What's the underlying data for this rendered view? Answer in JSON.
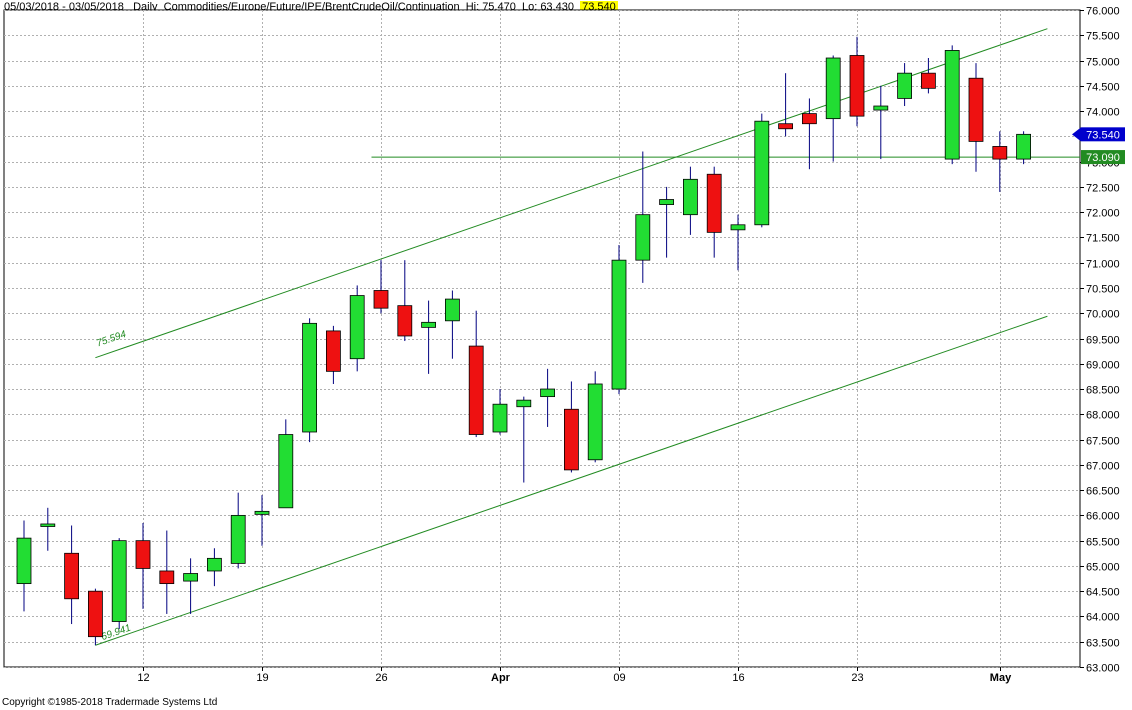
{
  "header": {
    "date_range": "05/03/2018 - 03/05/2018",
    "period": "Daily",
    "instrument": "Commodities/Europe/Future/IPE/BrentCrudeOil/Continuation",
    "hi_label": "Hi: 75.470",
    "lo_label": "Lo: 63.430",
    "last_value": "73.540"
  },
  "copyright": "Copyright ©1985-2018 Tradermade Systems Ltd",
  "colors": {
    "up": "#22dd33",
    "down": "#ee1111",
    "wick": "#000080",
    "trend": "#228b22",
    "grid": "#b0b0b0",
    "last_tag": "#0000cc",
    "level_tag": "#228b22"
  },
  "chart_data": {
    "type": "candlestick",
    "ylim": [
      63.0,
      76.0
    ],
    "y_ticks": [
      "63.000",
      "63.500",
      "64.000",
      "64.500",
      "65.000",
      "65.500",
      "66.000",
      "66.500",
      "67.000",
      "67.500",
      "68.000",
      "68.500",
      "69.000",
      "69.500",
      "70.000",
      "70.500",
      "71.000",
      "71.500",
      "72.000",
      "72.500",
      "73.000",
      "73.500",
      "74.000",
      "74.500",
      "75.000",
      "75.500",
      "76.000"
    ],
    "x_ticks": [
      {
        "label": "12",
        "index": 5,
        "bold": false
      },
      {
        "label": "19",
        "index": 10,
        "bold": false
      },
      {
        "label": "26",
        "index": 15,
        "bold": false
      },
      {
        "label": "Apr",
        "index": 20,
        "bold": true
      },
      {
        "label": "09",
        "index": 25,
        "bold": false
      },
      {
        "label": "16",
        "index": 30,
        "bold": false
      },
      {
        "label": "23",
        "index": 35,
        "bold": false
      },
      {
        "label": "May",
        "index": 41,
        "bold": true
      }
    ],
    "candles": [
      {
        "o": 64.65,
        "h": 65.9,
        "l": 64.1,
        "c": 65.55
      },
      {
        "o": 65.78,
        "h": 66.15,
        "l": 65.3,
        "c": 65.83
      },
      {
        "o": 65.25,
        "h": 65.8,
        "l": 63.85,
        "c": 64.35
      },
      {
        "o": 64.5,
        "h": 64.55,
        "l": 63.43,
        "c": 63.6
      },
      {
        "o": 63.9,
        "h": 65.55,
        "l": 63.75,
        "c": 65.5
      },
      {
        "o": 65.5,
        "h": 65.85,
        "l": 64.15,
        "c": 64.95
      },
      {
        "o": 64.9,
        "h": 65.7,
        "l": 64.05,
        "c": 64.65
      },
      {
        "o": 64.7,
        "h": 65.15,
        "l": 64.05,
        "c": 64.85
      },
      {
        "o": 64.9,
        "h": 65.35,
        "l": 64.6,
        "c": 65.15
      },
      {
        "o": 65.05,
        "h": 66.45,
        "l": 64.95,
        "c": 66.0
      },
      {
        "o": 66.02,
        "h": 66.4,
        "l": 65.4,
        "c": 66.08
      },
      {
        "o": 66.15,
        "h": 67.9,
        "l": 66.15,
        "c": 67.6
      },
      {
        "o": 67.65,
        "h": 69.9,
        "l": 67.45,
        "c": 69.8
      },
      {
        "o": 69.65,
        "h": 69.75,
        "l": 68.6,
        "c": 68.85
      },
      {
        "o": 69.1,
        "h": 70.55,
        "l": 68.85,
        "c": 70.35
      },
      {
        "o": 70.45,
        "h": 71.05,
        "l": 70.0,
        "c": 70.1
      },
      {
        "o": 70.15,
        "h": 71.05,
        "l": 69.45,
        "c": 69.55
      },
      {
        "o": 69.72,
        "h": 70.25,
        "l": 68.8,
        "c": 69.82
      },
      {
        "o": 69.85,
        "h": 70.45,
        "l": 69.1,
        "c": 70.28
      },
      {
        "o": 69.35,
        "h": 70.05,
        "l": 67.55,
        "c": 67.6
      },
      {
        "o": 67.65,
        "h": 68.5,
        "l": 67.6,
        "c": 68.2
      },
      {
        "o": 68.15,
        "h": 68.35,
        "l": 66.65,
        "c": 68.28
      },
      {
        "o": 68.35,
        "h": 68.9,
        "l": 67.75,
        "c": 68.5
      },
      {
        "o": 68.1,
        "h": 68.65,
        "l": 66.85,
        "c": 66.9
      },
      {
        "o": 67.1,
        "h": 68.85,
        "l": 67.05,
        "c": 68.6
      },
      {
        "o": 68.5,
        "h": 71.35,
        "l": 68.4,
        "c": 71.05
      },
      {
        "o": 71.05,
        "h": 73.2,
        "l": 70.6,
        "c": 71.95
      },
      {
        "o": 72.15,
        "h": 72.5,
        "l": 71.1,
        "c": 72.25
      },
      {
        "o": 71.95,
        "h": 72.9,
        "l": 71.55,
        "c": 72.65
      },
      {
        "o": 72.75,
        "h": 72.9,
        "l": 71.1,
        "c": 71.6
      },
      {
        "o": 71.65,
        "h": 71.95,
        "l": 70.85,
        "c": 71.75
      },
      {
        "o": 71.75,
        "h": 73.95,
        "l": 71.7,
        "c": 73.8
      },
      {
        "o": 73.75,
        "h": 74.75,
        "l": 73.5,
        "c": 73.65
      },
      {
        "o": 73.95,
        "h": 74.25,
        "l": 72.85,
        "c": 73.75
      },
      {
        "o": 73.85,
        "h": 75.1,
        "l": 73.0,
        "c": 75.05
      },
      {
        "o": 75.1,
        "h": 75.47,
        "l": 73.7,
        "c": 73.9
      },
      {
        "o": 74.02,
        "h": 74.5,
        "l": 73.05,
        "c": 74.1
      },
      {
        "o": 74.25,
        "h": 74.95,
        "l": 74.1,
        "c": 74.75
      },
      {
        "o": 74.75,
        "h": 75.05,
        "l": 74.35,
        "c": 74.45
      },
      {
        "o": 73.05,
        "h": 75.3,
        "l": 72.95,
        "c": 75.2
      },
      {
        "o": 74.65,
        "h": 74.95,
        "l": 72.8,
        "c": 73.4
      },
      {
        "o": 73.3,
        "h": 73.6,
        "l": 72.4,
        "c": 73.05
      },
      {
        "o": 73.05,
        "h": 73.6,
        "l": 72.95,
        "c": 73.54
      }
    ],
    "annotations": {
      "upper_channel_label": "75.594",
      "lower_channel_label": "69.941",
      "horizontal_level": "73.090",
      "last_price": "73.540"
    }
  }
}
